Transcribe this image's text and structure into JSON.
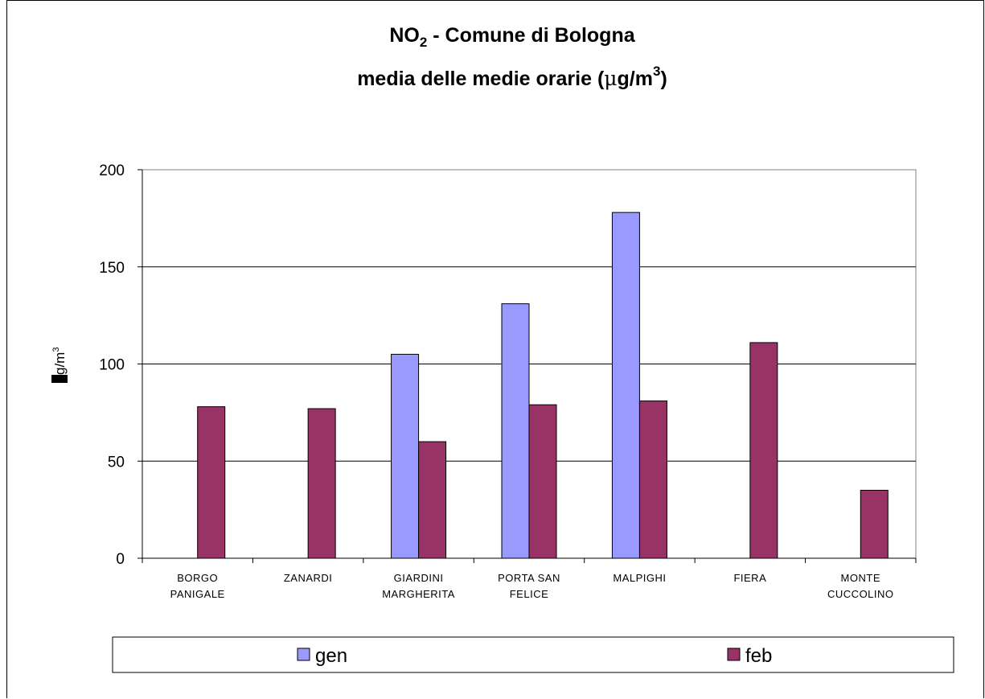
{
  "chart_data": {
    "type": "bar",
    "title_line1": "NO",
    "title_line1_sub": "2",
    "title_line1_rest": " - Comune di Bologna",
    "title_line2": "media delle medie orarie (",
    "title_line2_mu": "μ",
    "title_line2_unit": "g/m",
    "title_line2_sup": "3",
    "title_line2_end": ")",
    "ylabel": "g/m",
    "ylabel_sup": "3",
    "xlabel": "",
    "ylim": [
      0,
      200
    ],
    "yticks": [
      "0",
      "50",
      "100",
      "150",
      "200"
    ],
    "categories": [
      [
        "BORGO",
        "PANIGALE"
      ],
      [
        "ZANARDI"
      ],
      [
        "GIARDINI",
        "MARGHERITA"
      ],
      [
        "PORTA SAN",
        "FELICE"
      ],
      [
        "MALPIGHI"
      ],
      [
        "FIERA"
      ],
      [
        "MONTE",
        "CUCCOLINO"
      ]
    ],
    "series": [
      {
        "name": "gen",
        "color": "#9999ff",
        "values": [
          null,
          null,
          105,
          131,
          178,
          null,
          null
        ]
      },
      {
        "name": "feb",
        "color": "#993366",
        "values": [
          78,
          77,
          60,
          79,
          81,
          111,
          35
        ]
      }
    ],
    "grid": true,
    "legend_position": "bottom"
  }
}
